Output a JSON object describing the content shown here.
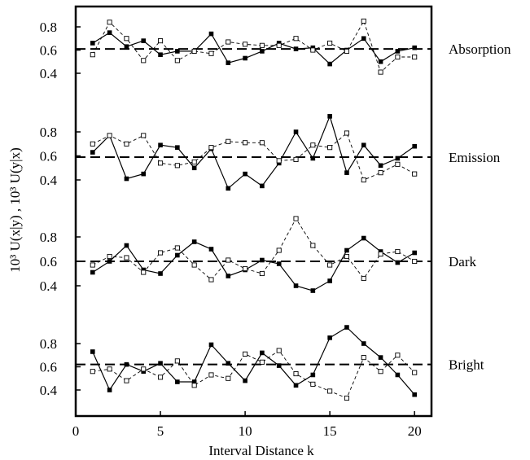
{
  "chart_data": {
    "type": "line",
    "xlabel": "Interval Distance k",
    "ylabel": "10³ U(x|y) ,  10³ U(y|x)",
    "xlim": [
      0,
      21
    ],
    "xticks": [
      0,
      5,
      10,
      15,
      20
    ],
    "x": [
      1,
      2,
      3,
      4,
      5,
      6,
      7,
      8,
      9,
      10,
      11,
      12,
      13,
      14,
      15,
      16,
      17,
      18,
      19,
      20
    ],
    "panels": [
      {
        "label": "Absorption",
        "ylim": [
          0.3,
          0.9
        ],
        "yticks": [
          0.4,
          0.6,
          0.8
        ],
        "reference": 0.61,
        "series": [
          {
            "marker": "filled-square",
            "line": "solid",
            "values": [
              0.66,
              0.75,
              0.63,
              0.68,
              0.56,
              0.59,
              0.59,
              0.74,
              0.49,
              0.53,
              0.59,
              0.66,
              0.61,
              0.62,
              0.48,
              0.6,
              0.7,
              0.5,
              0.59,
              0.62
            ]
          },
          {
            "marker": "open-square",
            "line": "dashed",
            "values": [
              0.56,
              0.84,
              0.7,
              0.51,
              0.68,
              0.51,
              0.59,
              0.57,
              0.67,
              0.65,
              0.64,
              0.64,
              0.7,
              0.6,
              0.66,
              0.59,
              0.85,
              0.41,
              0.54,
              0.54
            ]
          }
        ]
      },
      {
        "label": "Emission",
        "ylim": [
          0.3,
          0.95
        ],
        "yticks": [
          0.4,
          0.6,
          0.8
        ],
        "reference": 0.59,
        "series": [
          {
            "marker": "filled-square",
            "line": "solid",
            "values": [
              0.63,
              0.77,
              0.41,
              0.45,
              0.69,
              0.67,
              0.5,
              0.66,
              0.33,
              0.45,
              0.35,
              0.54,
              0.8,
              0.58,
              0.93,
              0.46,
              0.69,
              0.52,
              0.58,
              0.68
            ]
          },
          {
            "marker": "open-square",
            "line": "dashed",
            "values": [
              0.7,
              0.77,
              0.7,
              0.77,
              0.54,
              0.52,
              0.55,
              0.67,
              0.72,
              0.71,
              0.71,
              0.56,
              0.57,
              0.69,
              0.67,
              0.79,
              0.4,
              0.46,
              0.53,
              0.45
            ]
          }
        ]
      },
      {
        "label": "Dark",
        "ylim": [
          0.3,
          0.95
        ],
        "yticks": [
          0.4,
          0.6,
          0.8
        ],
        "reference": 0.6,
        "series": [
          {
            "marker": "filled-square",
            "line": "solid",
            "values": [
              0.51,
              0.6,
              0.73,
              0.53,
              0.5,
              0.65,
              0.76,
              0.7,
              0.48,
              0.53,
              0.61,
              0.58,
              0.4,
              0.36,
              0.44,
              0.69,
              0.79,
              0.68,
              0.59,
              0.67
            ]
          },
          {
            "marker": "open-square",
            "line": "dashed",
            "values": [
              0.57,
              0.64,
              0.63,
              0.51,
              0.67,
              0.71,
              0.57,
              0.45,
              0.61,
              0.54,
              0.5,
              0.69,
              0.95,
              0.73,
              0.57,
              0.64,
              0.46,
              0.66,
              0.68,
              0.6
            ]
          }
        ]
      },
      {
        "label": "Bright",
        "ylim": [
          0.3,
          0.95
        ],
        "yticks": [
          0.4,
          0.6,
          0.8
        ],
        "reference": 0.62,
        "series": [
          {
            "marker": "filled-square",
            "line": "solid",
            "values": [
              0.73,
              0.4,
              0.62,
              0.56,
              0.63,
              0.47,
              0.47,
              0.79,
              0.63,
              0.48,
              0.72,
              0.61,
              0.44,
              0.53,
              0.85,
              0.94,
              0.8,
              0.68,
              0.53,
              0.36
            ]
          },
          {
            "marker": "open-square",
            "line": "dashed",
            "values": [
              0.56,
              0.58,
              0.48,
              0.58,
              0.51,
              0.65,
              0.44,
              0.53,
              0.5,
              0.71,
              0.64,
              0.74,
              0.54,
              0.45,
              0.39,
              0.33,
              0.68,
              0.56,
              0.7,
              0.55
            ]
          }
        ]
      }
    ]
  }
}
